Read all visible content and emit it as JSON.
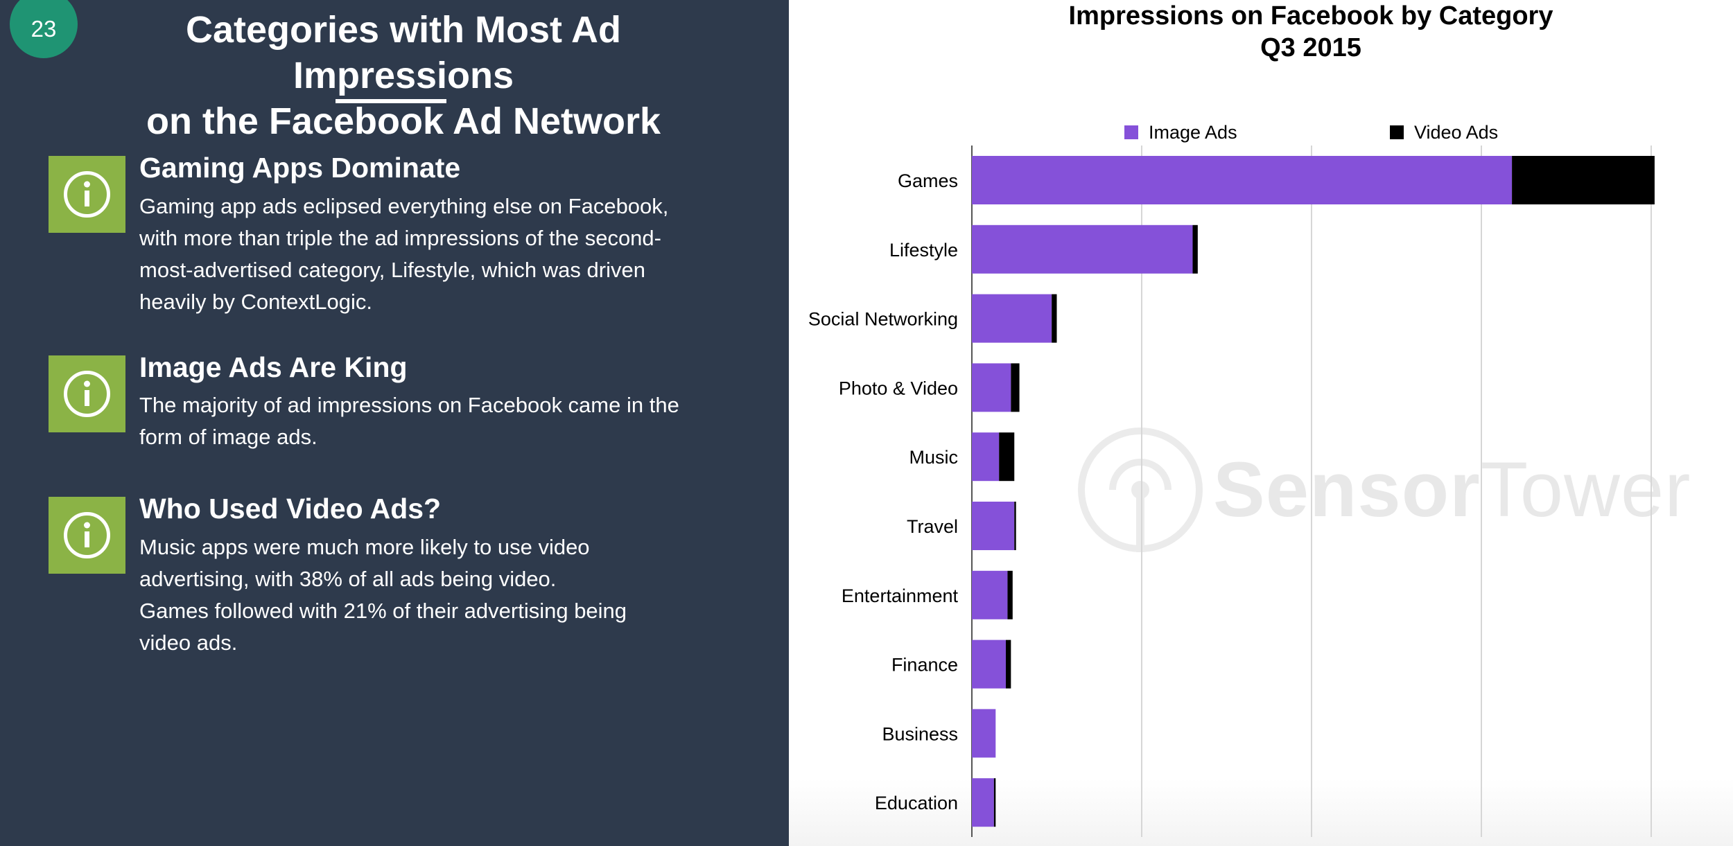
{
  "page": {
    "badge_number": "23",
    "title_line1": "Categories with Most Ad Impressions",
    "title_line2": "on the Facebook Ad Network"
  },
  "insights": [
    {
      "icon": "info-icon",
      "heading": "Gaming Apps Dominate",
      "body": "Gaming app ads eclipsed everything else on Facebook,\nwith more than triple the ad impressions of the second-\nmost-advertised category, Lifestyle, which was driven\nheavily by ContextLogic."
    },
    {
      "icon": "info-icon",
      "heading": "Image Ads Are King",
      "body": "The majority of ad impressions on Facebook came in the\nform of image ads."
    },
    {
      "icon": "info-icon",
      "heading": "Who Used Video Ads?",
      "body": "Music apps were much more likely to use video\nadvertising, with 38% of all ads being video.\nGames followed with 21% of their advertising being\nvideo ads."
    }
  ],
  "watermark": {
    "brand_bold": "Sensor",
    "brand_light": "Tower"
  },
  "colors": {
    "image_ads": "#8551d9",
    "video_ads": "#000000",
    "panel_bg": "#2e3a4c",
    "icon_bg": "#8bb346",
    "badge_bg": "#1f9473"
  },
  "chart_data": {
    "type": "bar",
    "orientation": "horizontal",
    "stacked": true,
    "title_line1": "Impressions on Facebook by Category",
    "title_line2": "Q3 2015",
    "categories": [
      "Games",
      "Lifestyle",
      "Social Networking",
      "Photo & Video",
      "Music",
      "Travel",
      "Entertainment",
      "Finance",
      "Business",
      "Education"
    ],
    "series": [
      {
        "name": "Image Ads",
        "values": [
          3.18,
          1.3,
          0.47,
          0.23,
          0.16,
          0.25,
          0.21,
          0.2,
          0.14,
          0.13
        ]
      },
      {
        "name": "Video Ads",
        "values": [
          0.84,
          0.03,
          0.03,
          0.05,
          0.09,
          0.01,
          0.03,
          0.03,
          0.0,
          0.01
        ]
      }
    ],
    "xlim": [
      0,
      4
    ],
    "grid": true,
    "legend_position": "top"
  }
}
